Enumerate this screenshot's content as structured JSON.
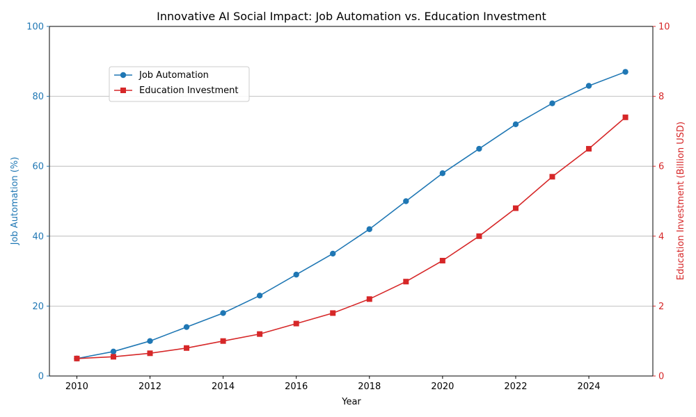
{
  "chart_data": {
    "type": "line",
    "title": "Innovative AI Social Impact: Job Automation vs. Education Investment",
    "xlabel": "Year",
    "ylabel_left": "Job Automation (%)",
    "ylabel_right": "Education Investment (Billion USD)",
    "x": [
      2010,
      2011,
      2012,
      2013,
      2014,
      2015,
      2016,
      2017,
      2018,
      2019,
      2020,
      2021,
      2022,
      2023,
      2024,
      2025
    ],
    "x_ticks": [
      "2010",
      "2012",
      "2014",
      "2016",
      "2018",
      "2020",
      "2022",
      "2024"
    ],
    "ylim_left": [
      0,
      100
    ],
    "ylim_right": [
      0,
      10
    ],
    "y_ticks_left": [
      "0",
      "20",
      "40",
      "60",
      "80",
      "100"
    ],
    "y_ticks_right": [
      "0",
      "2",
      "4",
      "6",
      "8",
      "10"
    ],
    "grid": "horizontal",
    "legend_position": "upper-left",
    "series": [
      {
        "name": "Job Automation",
        "axis": "left",
        "color": "#1f77b4",
        "marker": "circle",
        "values": [
          5,
          7,
          10,
          14,
          18,
          23,
          29,
          35,
          42,
          50,
          58,
          65,
          72,
          78,
          83,
          87
        ]
      },
      {
        "name": "Education Investment",
        "axis": "right",
        "color": "#d62728",
        "marker": "square",
        "values": [
          0.5,
          0.55,
          0.65,
          0.8,
          1.0,
          1.2,
          1.5,
          1.8,
          2.2,
          2.7,
          3.3,
          4.0,
          4.8,
          5.7,
          6.5,
          7.4
        ]
      }
    ]
  }
}
